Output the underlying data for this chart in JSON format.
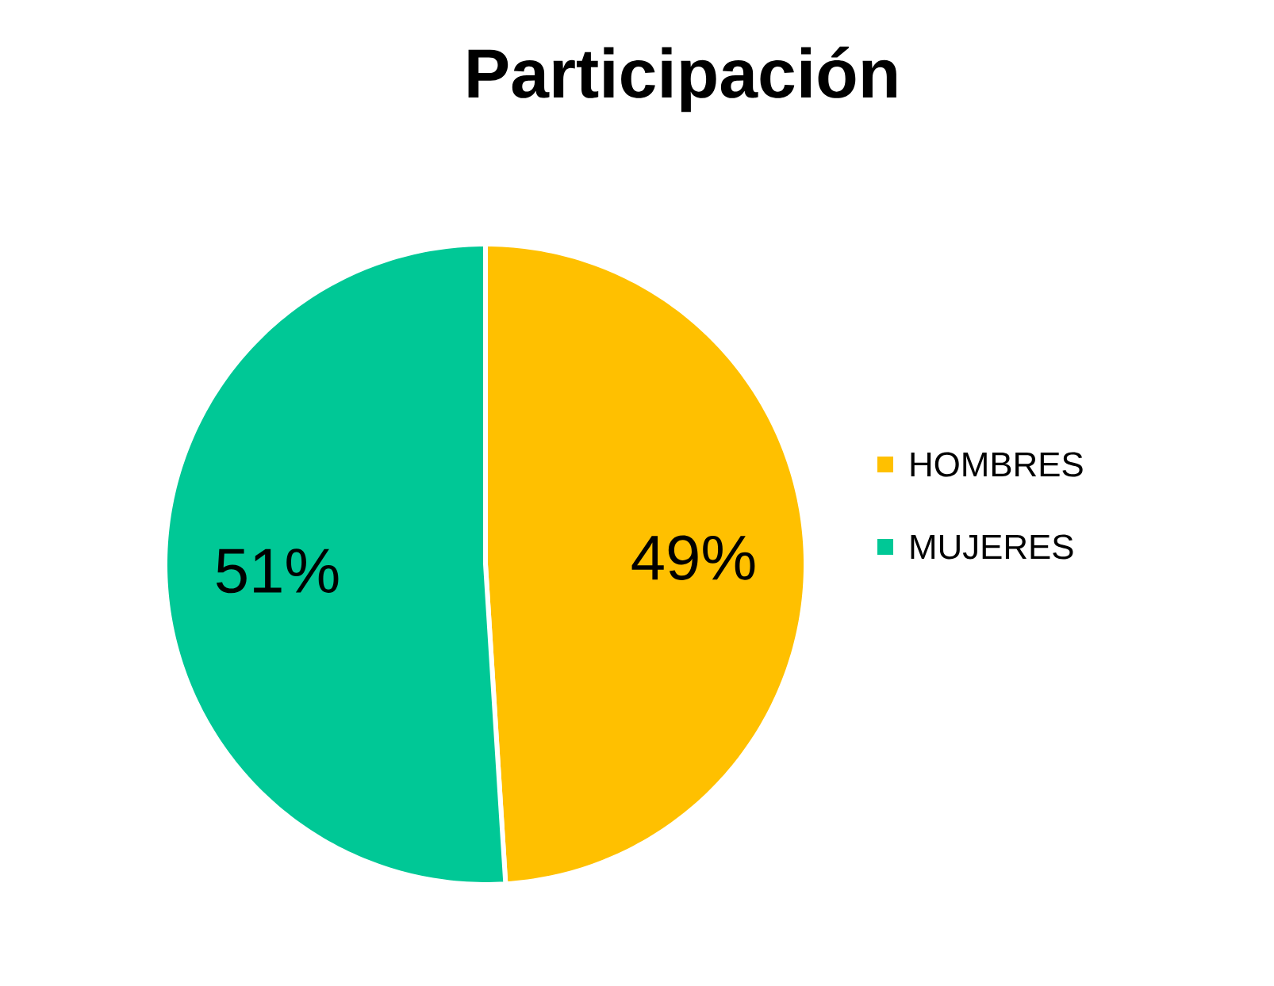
{
  "chart_data": {
    "type": "pie",
    "title": "Participación",
    "categories": [
      "HOMBRES",
      "MUJERES"
    ],
    "values": [
      49,
      51
    ],
    "colors": [
      "#ffc000",
      "#00c896"
    ],
    "value_labels": [
      "49%",
      "51%"
    ],
    "legend": "right"
  }
}
